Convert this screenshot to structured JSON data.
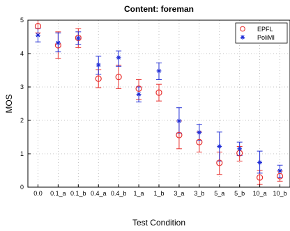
{
  "chart_data": {
    "type": "scatter",
    "title": "Content: foreman",
    "xlabel": "Test Condition",
    "ylabel": "MOS",
    "categories": [
      "0.0",
      "0.1_a",
      "0.1_b",
      "0.4_a",
      "0.4_b",
      "1_a",
      "1_b",
      "3_a",
      "3_b",
      "5_a",
      "5_b",
      "10_a",
      "10_b"
    ],
    "ylim": [
      0,
      5
    ],
    "yticks": [
      "0",
      "1",
      "2",
      "3",
      "4",
      "5"
    ],
    "grid": true,
    "legend_position": "top-right",
    "error_bars": true,
    "series": [
      {
        "name": "EPFL",
        "marker": "circle",
        "color": "#e8302e",
        "values": [
          4.82,
          4.25,
          4.47,
          3.25,
          3.3,
          2.95,
          2.83,
          1.56,
          1.35,
          0.73,
          1.02,
          0.29,
          0.33
        ],
        "lower": [
          4.62,
          3.85,
          4.18,
          2.98,
          2.95,
          2.62,
          2.58,
          1.15,
          1.05,
          0.38,
          0.78,
          0.08,
          0.18
        ],
        "upper": [
          5.0,
          4.65,
          4.75,
          3.52,
          3.65,
          3.22,
          3.08,
          1.98,
          1.65,
          1.05,
          1.22,
          0.5,
          0.48
        ]
      },
      {
        "name": "PoliMI",
        "marker": "star",
        "color": "#1f2cd6",
        "values": [
          4.55,
          4.32,
          4.46,
          3.66,
          3.88,
          2.78,
          3.48,
          1.98,
          1.64,
          1.22,
          1.15,
          0.74,
          0.49
        ],
        "lower": [
          4.35,
          4.05,
          4.28,
          3.38,
          3.62,
          2.55,
          3.22,
          1.62,
          1.4,
          0.78,
          0.95,
          0.42,
          0.28
        ],
        "upper": [
          4.75,
          4.62,
          4.65,
          3.92,
          4.08,
          3.0,
          3.72,
          2.38,
          1.88,
          1.65,
          1.35,
          1.08,
          0.66
        ]
      }
    ]
  }
}
